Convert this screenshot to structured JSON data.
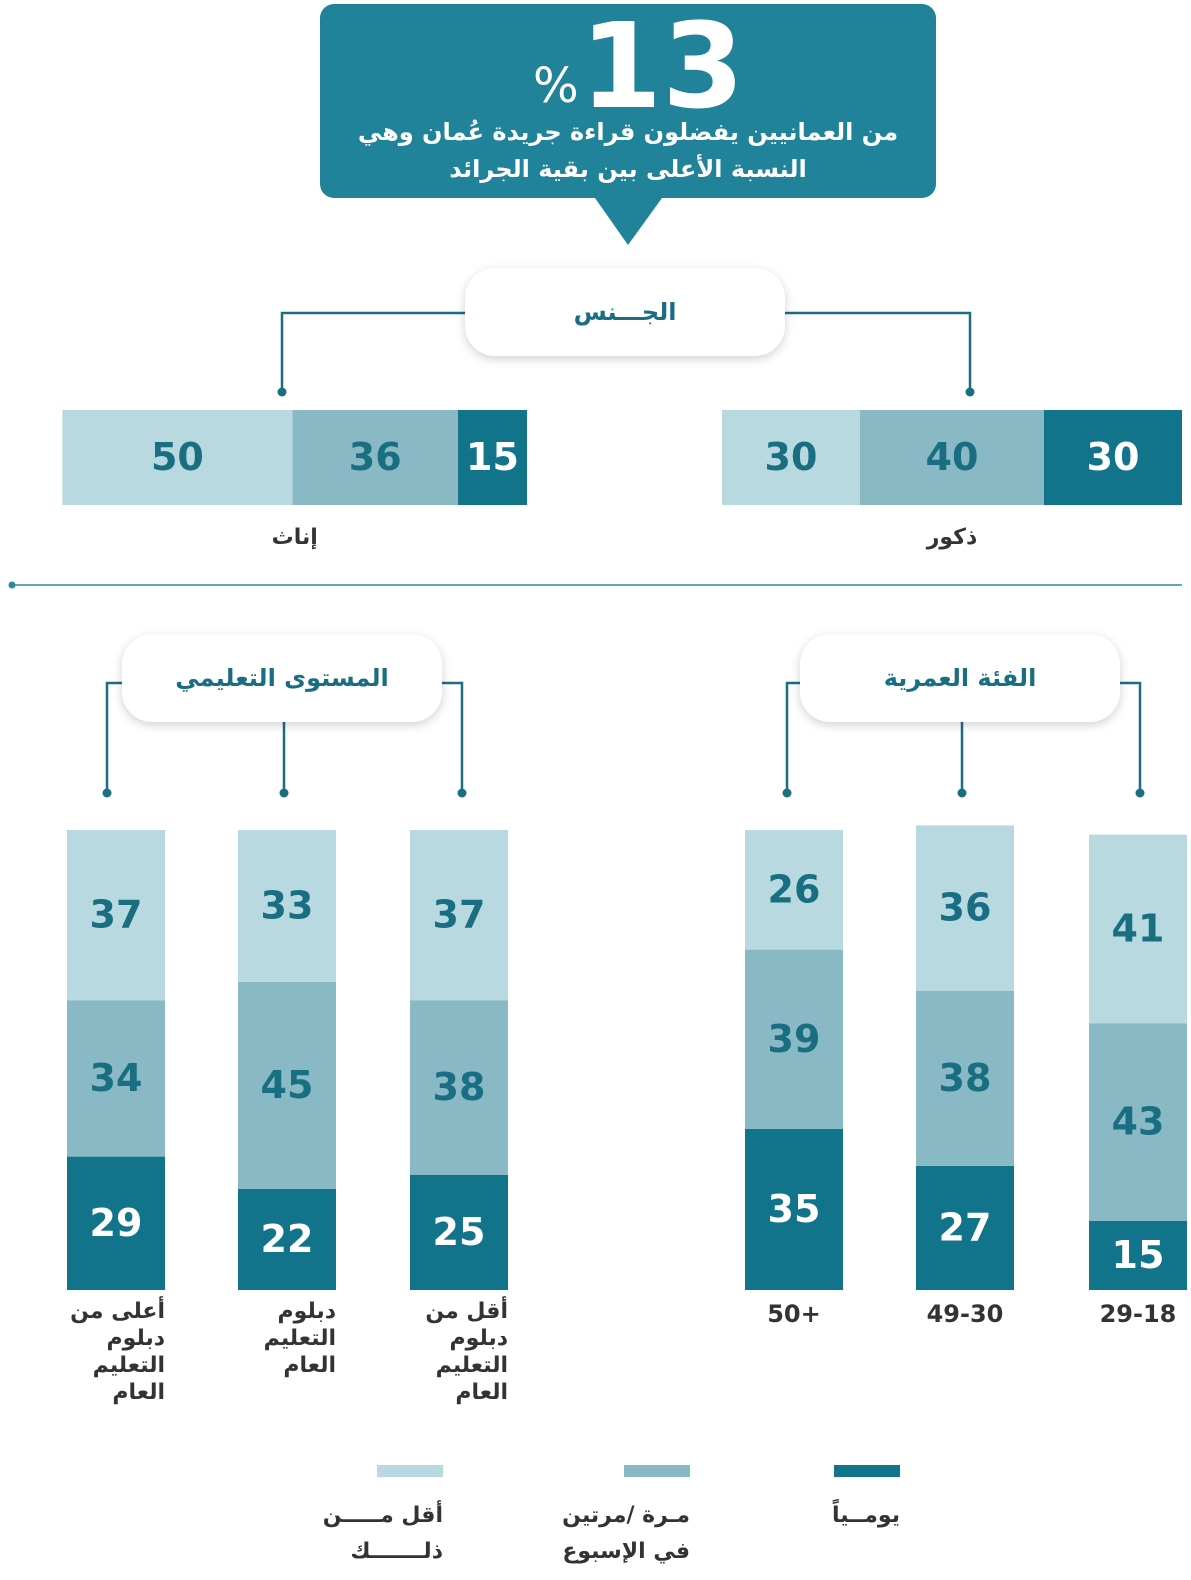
{
  "header": {
    "number": "13",
    "unit": "%",
    "lines": [
      "من العمانيين يفضلون قراءة جريدة عُمان وهي",
      "النسبة الأعلى بين بقية الجرائد"
    ]
  },
  "chart_data": [
    {
      "type": "hbar",
      "title": "الجـــنس",
      "categories": [
        "ذكور",
        "إناث"
      ],
      "series": [
        {
          "name": "يومــياً",
          "color": "#11748a",
          "values": [
            30,
            15
          ]
        },
        {
          "name": "مـرة /مرتين في الإسبوع",
          "color": "#88b9c4",
          "values": [
            40,
            36
          ]
        },
        {
          "name": "أقل مـــــن ذلـــــــك",
          "color": "#b8d9df",
          "values": [
            30,
            50
          ]
        }
      ]
    },
    {
      "type": "vbar",
      "title": "الفئة العمرية",
      "categories": [
        "29-18",
        "49-30",
        "50+"
      ],
      "series": [
        {
          "color": "#11748a",
          "values": [
            15,
            27,
            35
          ]
        },
        {
          "color": "#88b9c4",
          "values": [
            43,
            38,
            39
          ]
        },
        {
          "color": "#b8d9df",
          "values": [
            41,
            36,
            26
          ]
        }
      ]
    },
    {
      "type": "vbar",
      "title": "المستوى التعليمي",
      "categories": [
        "أقل من دبلوم التعليم العام",
        "دبلوم التعليم العام",
        "أعلى من دبلوم التعليم العام"
      ],
      "series": [
        {
          "color": "#11748a",
          "values": [
            25,
            22,
            29
          ]
        },
        {
          "color": "#88b9c4",
          "values": [
            38,
            45,
            34
          ]
        },
        {
          "color": "#b8d9df",
          "values": [
            37,
            33,
            37
          ]
        }
      ]
    }
  ]
}
